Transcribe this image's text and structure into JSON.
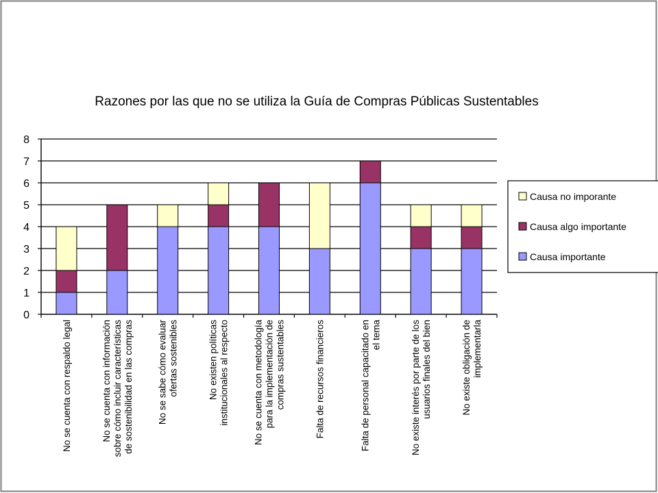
{
  "chart_data": {
    "type": "bar",
    "stacked": true,
    "title": "Razones por las que no se utiliza la Guía de Compras Públicas Sustentables",
    "xlabel": "",
    "ylabel": "",
    "ylim": [
      0,
      8
    ],
    "yticks": [
      0,
      1,
      2,
      3,
      4,
      5,
      6,
      7,
      8
    ],
    "grid": true,
    "legend_position": "right",
    "categories": [
      [
        "No se cuenta con respaldo legal"
      ],
      [
        "No se cuenta con información",
        "sobre cómo incluir características",
        "de sostenibilidad en las compras"
      ],
      [
        "No se sabe  cómo evaluar",
        "ofertas sostenibles"
      ],
      [
        "No existen políticas",
        "institucionales al respecto"
      ],
      [
        "No se cuenta con metodología",
        "para la implementación de",
        "compras sustentables"
      ],
      [
        "Falta de recursos financieros"
      ],
      [
        "Falta de personal capacitado en",
        "el tema"
      ],
      [
        "No existe interés por parte de los",
        "usuarios finales del bien"
      ],
      [
        "No existe obligación de",
        "implementarla"
      ]
    ],
    "series": [
      {
        "name": "Causa importante",
        "color": "#9999ff",
        "values": [
          1,
          2,
          4,
          4,
          4,
          3,
          6,
          3,
          3
        ]
      },
      {
        "name": "Causa algo importante",
        "color": "#993366",
        "values": [
          1,
          3,
          0,
          1,
          2,
          0,
          1,
          1,
          1
        ]
      },
      {
        "name": "Causa no imporante",
        "color": "#ffffcc",
        "values": [
          2,
          0,
          1,
          1,
          0,
          3,
          0,
          1,
          1
        ]
      }
    ],
    "legend_order": [
      "Causa no imporante",
      "Causa algo importante",
      "Causa importante"
    ]
  },
  "colors": {
    "frame_border": "#808080",
    "axis": "#000000",
    "gridline": "#000000"
  }
}
